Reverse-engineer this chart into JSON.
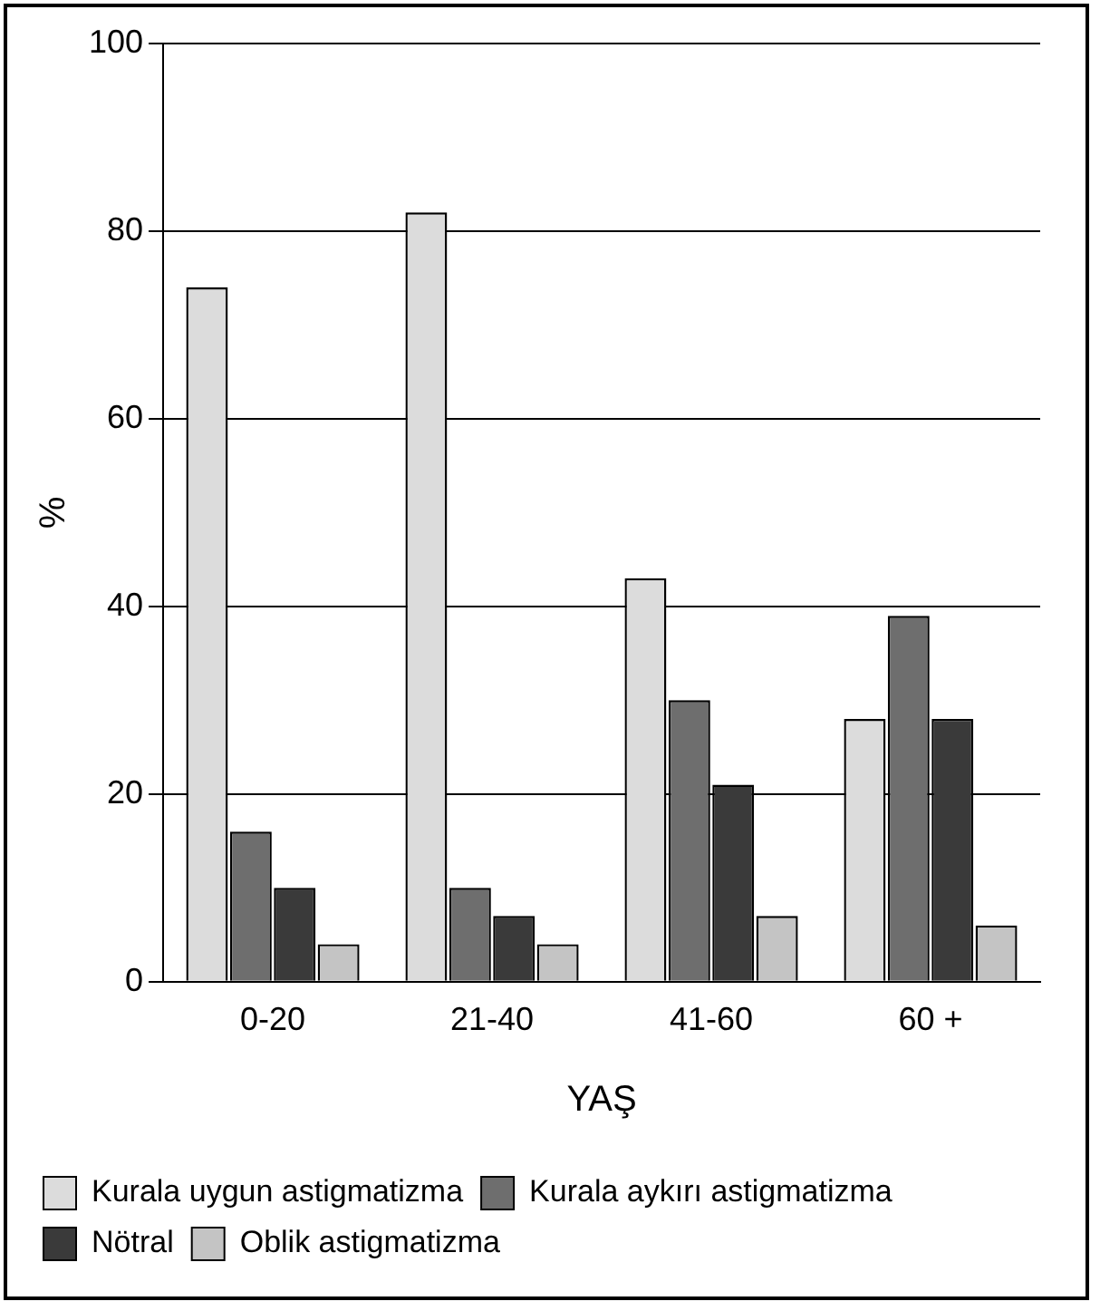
{
  "chart_data": {
    "type": "bar",
    "xlabel": "YAŞ",
    "ylabel": "%",
    "categories": [
      "0-20",
      "21-40",
      "41-60",
      "60 +"
    ],
    "series": [
      {
        "name": "Kurala uygun astigmatizma",
        "color": "#dcdcdc",
        "values": [
          74,
          82,
          43,
          28
        ]
      },
      {
        "name": "Kurala aykırı astigmatizma",
        "color": "#6e6e6e",
        "values": [
          16,
          10,
          30,
          39
        ]
      },
      {
        "name": "Nötral",
        "color": "#3a3a3a",
        "values": [
          10,
          7,
          21,
          28
        ]
      },
      {
        "name": "Oblik astigmatizma",
        "color": "#c4c4c4",
        "values": [
          4,
          4,
          7,
          6
        ]
      }
    ],
    "ylim": [
      0,
      100
    ],
    "yticks": [
      0,
      20,
      40,
      60,
      80,
      100
    ],
    "grid": "y",
    "legend": "bottom"
  }
}
